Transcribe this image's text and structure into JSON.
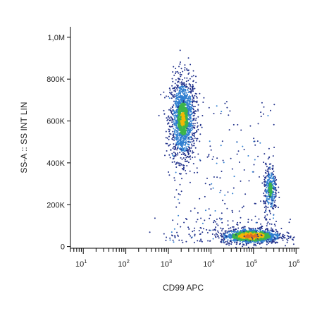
{
  "chart_data": {
    "type": "scatter",
    "title": "",
    "xlabel": "CD99 APC",
    "ylabel": "SS-A :: SS INT LIN",
    "x_scale": "log",
    "xlim": [
      5,
      1200000
    ],
    "ylim": [
      -8000,
      1050000
    ],
    "x_ticks": [
      {
        "value": 10,
        "base": "10",
        "exp": "1"
      },
      {
        "value": 100,
        "base": "10",
        "exp": "2"
      },
      {
        "value": 1000,
        "base": "10",
        "exp": "3"
      },
      {
        "value": 10000,
        "base": "10",
        "exp": "4"
      },
      {
        "value": 100000,
        "base": "10",
        "exp": "5"
      },
      {
        "value": 1000000,
        "base": "10",
        "exp": "6"
      }
    ],
    "y_ticks": [
      {
        "value": 0,
        "label": "0"
      },
      {
        "value": 200000,
        "label": "200K"
      },
      {
        "value": 400000,
        "label": "400K"
      },
      {
        "value": 600000,
        "label": "600K"
      },
      {
        "value": 800000,
        "label": "800K"
      },
      {
        "value": 1000000,
        "label": "1,0M"
      }
    ],
    "grid": false,
    "legend": "none",
    "colors": {
      "sparse": "#1f2f8a",
      "low": "#2f7fd0",
      "mid": "#3cb44b",
      "high": "#f2b705",
      "peak": "#e07020"
    },
    "populations": [
      {
        "name": "",
        "x_center": 2200,
        "y_center": 610000,
        "x_spread_decades": 0.15,
        "y_spread": 100000,
        "density": "high"
      },
      {
        "name": "",
        "x_center": 90000,
        "y_center": 50000,
        "x_spread_decades": 0.35,
        "y_spread": 18000,
        "density": "peak"
      },
      {
        "name": "",
        "x_center": 250000,
        "y_center": 270000,
        "x_spread_decades": 0.08,
        "y_spread": 60000,
        "density": "mid"
      }
    ]
  }
}
